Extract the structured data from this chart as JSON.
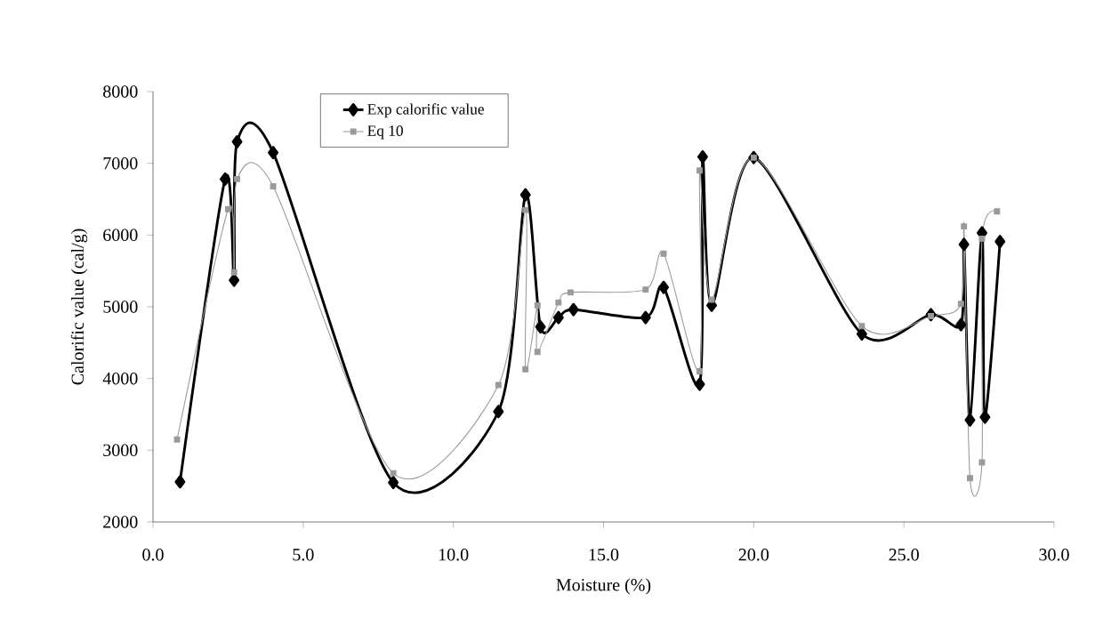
{
  "chart_data": {
    "type": "line",
    "xlabel": "Moisture (%)",
    "ylabel": "Calorific value (cal/g)",
    "xlim": [
      0,
      30
    ],
    "ylim": [
      2000,
      8000
    ],
    "xticks": [
      {
        "value": 0,
        "label": "0.0"
      },
      {
        "value": 5,
        "label": "5.0"
      },
      {
        "value": 10,
        "label": "10.0"
      },
      {
        "value": 15,
        "label": "15.0"
      },
      {
        "value": 20,
        "label": "20.0"
      },
      {
        "value": 25,
        "label": "25.0"
      },
      {
        "value": 30,
        "label": "30.0"
      }
    ],
    "yticks": [
      2000,
      3000,
      4000,
      5000,
      6000,
      7000,
      8000
    ],
    "grid": false,
    "legend": "top",
    "line_style": "solid",
    "series": [
      {
        "name": "Exp calorific value",
        "color": "#000000",
        "marker": "diamond",
        "x": [
          0.9,
          2.4,
          2.7,
          2.8,
          4.0,
          8.0,
          11.5,
          12.4,
          12.9,
          13.5,
          14.0,
          16.4,
          17.0,
          18.2,
          18.3,
          18.6,
          20.0,
          23.6,
          25.9,
          26.9,
          27.0,
          27.2,
          27.6,
          27.7,
          28.2
        ],
        "values": [
          2560,
          6780,
          5370,
          7300,
          7150,
          2550,
          3540,
          6560,
          4720,
          4850,
          4960,
          4850,
          5270,
          3920,
          7090,
          5020,
          7080,
          4620,
          4890,
          4750,
          5870,
          3420,
          6030,
          3460,
          5910
        ]
      },
      {
        "name": "Eq 10",
        "color": "#9a9a9a",
        "marker": "square",
        "x": [
          0.8,
          2.5,
          2.7,
          2.8,
          4.0,
          8.0,
          11.5,
          12.4,
          12.4,
          12.8,
          12.8,
          13.5,
          13.9,
          16.4,
          17.0,
          18.2,
          18.2,
          18.6,
          20.0,
          23.6,
          25.9,
          26.9,
          27.0,
          27.2,
          27.6,
          27.6,
          28.1
        ],
        "values": [
          3150,
          6360,
          5480,
          6780,
          6680,
          2680,
          3910,
          6350,
          4130,
          5020,
          4370,
          5060,
          5200,
          5240,
          5740,
          4100,
          6900,
          5100,
          7080,
          4730,
          4870,
          5040,
          6120,
          2610,
          2830,
          5950,
          6330
        ]
      }
    ]
  }
}
